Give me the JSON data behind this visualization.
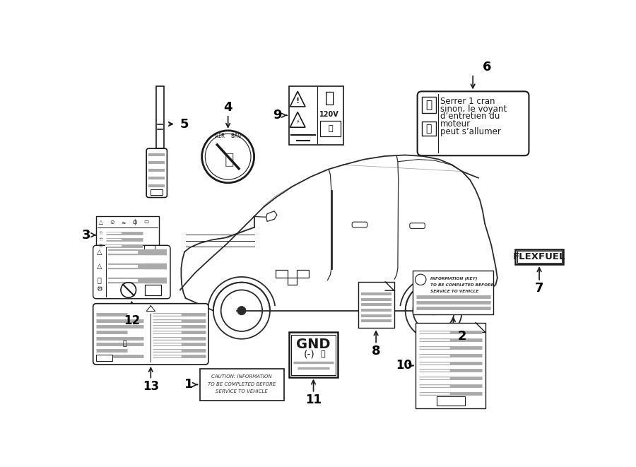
{
  "bg_color": "#ffffff",
  "line_color": "#1a1a1a",
  "gray_bar": "#aaaaaa",
  "gray_bar2": "#888888",
  "light_gray": "#cccccc",
  "label6_lines": [
    "Serrer 1 cran",
    "sinon, le voyant",
    "d’entretien du",
    "moteur",
    "peut s’allumer"
  ],
  "flexfuel_text": "FLEXFUEL",
  "gnd_line1": "GND",
  "gnd_line2": "(-)",
  "num_color": "#000000",
  "car_color": "#2a2a2a"
}
